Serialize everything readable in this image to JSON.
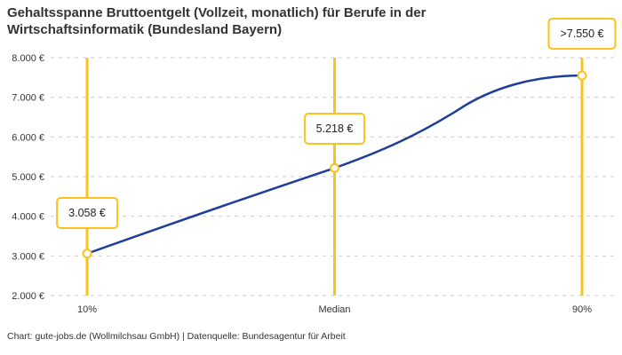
{
  "header": {
    "title_line1": "Gehaltsspanne Bruttoentgelt (Vollzeit, monatlich) für Berufe in der",
    "title_line2": "Wirtschaftsinformatik (Bundesland Bayern)"
  },
  "footer": {
    "credit": "Chart: gute-jobs.de (Wollmilchsau GmbH) | Datenquelle: Bundesagentur für Arbeit"
  },
  "chart_data": {
    "type": "line",
    "title": "Gehaltsspanne Bruttoentgelt (Vollzeit, monatlich) für Berufe in der Wirtschaftsinformatik (Bundesland Bayern)",
    "categories": [
      "10%",
      "Median",
      "90%"
    ],
    "values": [
      3058,
      5218,
      7550
    ],
    "point_labels": [
      "3.058 €",
      "5.218 €",
      ">7.550 €"
    ],
    "ylim": [
      2000,
      8000
    ],
    "ytick_step": 1000,
    "ytick_labels": [
      "2.000 €",
      "3.000 €",
      "4.000 €",
      "5.000 €",
      "6.000 €",
      "7.000 €",
      "8.000 €"
    ],
    "xlabel": "",
    "ylabel": "",
    "grid": "horizontal-dashed",
    "legend": "none",
    "smooth": true,
    "colors": {
      "line": "#1f3d9b",
      "marker_fill": "#ffffff",
      "marker_stroke": "#fbc21b",
      "vline": "#fbc21b",
      "label_border": "#fbc21b",
      "grid": "#cccccc",
      "text": "#333333"
    }
  }
}
